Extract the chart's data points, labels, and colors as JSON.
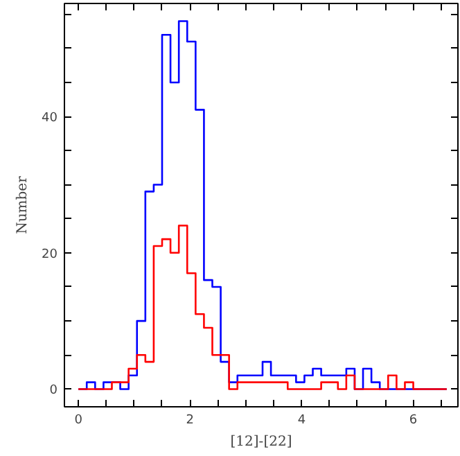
{
  "chart_data": {
    "type": "histogram",
    "xlabel": "[12]-[22]",
    "ylabel": "Number",
    "bins": [
      0,
      0.15,
      0.3,
      0.45,
      0.6,
      0.75,
      0.9,
      1.05,
      1.2,
      1.35,
      1.5,
      1.65,
      1.8,
      1.95,
      2.1,
      2.25,
      2.4,
      2.55,
      2.7,
      2.85,
      3,
      3.15,
      3.3,
      3.45,
      3.6,
      3.75,
      3.9,
      4.05,
      4.2,
      4.35,
      4.5,
      4.65,
      4.8,
      4.95,
      5.1,
      5.25,
      5.4,
      5.55,
      5.7,
      5.85,
      6,
      6.15,
      6.3,
      6.45,
      6.6
    ],
    "series": [
      {
        "color": "#0000ff",
        "values": [
          0,
          1,
          0,
          1,
          1,
          0,
          2,
          10,
          29,
          30,
          52,
          45,
          54,
          51,
          41,
          16,
          15,
          4,
          1,
          2,
          2,
          2,
          4,
          2,
          2,
          2,
          1,
          2,
          3,
          2,
          2,
          2,
          3,
          0,
          3,
          1,
          0,
          0,
          0,
          0,
          0,
          0,
          0,
          0
        ]
      },
      {
        "color": "#ff0000",
        "values": [
          0,
          0,
          0,
          0,
          1,
          1,
          3,
          5,
          4,
          21,
          22,
          20,
          24,
          17,
          11,
          9,
          5,
          5,
          0,
          1,
          1,
          1,
          1,
          1,
          1,
          0,
          0,
          0,
          0,
          1,
          1,
          0,
          2,
          0,
          0,
          0,
          0,
          2,
          0,
          1,
          0,
          0,
          0,
          0
        ]
      }
    ],
    "xlim": [
      -0.25,
      6.8
    ],
    "ylim": [
      -2.6,
      56.6
    ],
    "xticks": [
      0,
      {
        "value": 0.5,
        "label": null
      },
      {
        "value": 1,
        "label": null
      },
      {
        "value": 1.5,
        "label": null
      },
      2,
      {
        "value": 2.5,
        "label": null
      },
      {
        "value": 3,
        "label": null
      },
      {
        "value": 3.5,
        "label": null
      },
      4,
      {
        "value": 4.5,
        "label": null
      },
      {
        "value": 5,
        "label": null
      },
      {
        "value": 5.5,
        "label": null
      },
      6,
      {
        "value": 6.5,
        "label": null
      }
    ],
    "yticks": [
      0,
      {
        "value": 5,
        "label": null
      },
      {
        "value": 10,
        "label": null
      },
      {
        "value": 15,
        "label": null
      },
      20,
      {
        "value": 25,
        "label": null
      },
      {
        "value": 30,
        "label": null
      },
      {
        "value": 35,
        "label": null
      },
      40,
      {
        "value": 45,
        "label": null
      },
      {
        "value": 50,
        "label": null
      },
      {
        "value": 55,
        "label": null
      }
    ],
    "grid": false
  }
}
